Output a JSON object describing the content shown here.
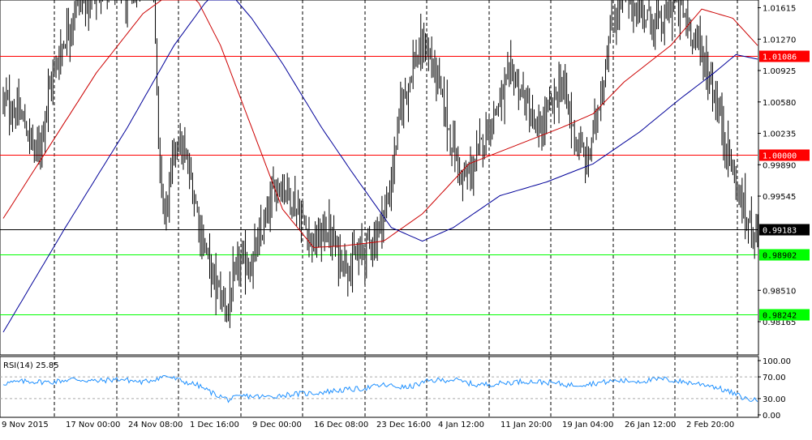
{
  "chart_data": {
    "type": "candlestick",
    "symbol_note": "",
    "price_axis": {
      "min": 0.978,
      "max": 1.017,
      "ticks": [
        "1.01615",
        "1.01270",
        "1.00925",
        "1.00580",
        "1.00235",
        "0.99890",
        "0.99545",
        "0.98510",
        "0.98165"
      ],
      "tick_values": [
        1.01615,
        1.0127,
        1.00925,
        1.0058,
        1.00235,
        0.9989,
        0.99545,
        0.9851,
        0.98165
      ]
    },
    "time_axis": {
      "labels": [
        "9 Nov 2015",
        "17 Nov 00:00",
        "24 Nov 08:00",
        "1 Dec 16:00",
        "9 Dec 00:00",
        "16 Dec 08:00",
        "23 Dec 16:00",
        "4 Jan 12:00",
        "11 Jan 20:00",
        "19 Jan 04:00",
        "26 Jan 12:00",
        "2 Feb 20:00"
      ]
    },
    "horizontal_lines": [
      {
        "name": "resistance-1",
        "value": 1.01086,
        "label": "1.01086",
        "color": "#ff0000",
        "badge_color": "#ff0000"
      },
      {
        "name": "resistance-2",
        "value": 1.0,
        "label": "1.00000",
        "color": "#ff0000",
        "badge_color": "#ff0000"
      },
      {
        "name": "current-price",
        "value": 0.99183,
        "label": "0.99183",
        "color": "#000000",
        "badge_color": "#000000"
      },
      {
        "name": "support-1",
        "value": 0.98902,
        "label": "0.98902",
        "color": "#00ff00",
        "badge_color": "#00ff00"
      },
      {
        "name": "support-2",
        "value": 0.98242,
        "label": "0.98242",
        "color": "#00ff00",
        "badge_color": "#00ff00"
      }
    ],
    "ohlc_anchors": [
      [
        0,
        1.006
      ],
      [
        12,
        1.004
      ],
      [
        22,
        1.0
      ],
      [
        30,
        1.0075
      ],
      [
        38,
        1.012
      ],
      [
        46,
        1.016
      ],
      [
        58,
        1.018
      ],
      [
        70,
        1.019
      ],
      [
        82,
        1.017
      ],
      [
        90,
        1.022
      ],
      [
        96,
        1.025
      ],
      [
        100,
        1.0
      ],
      [
        104,
        0.993
      ],
      [
        112,
        1.002
      ],
      [
        120,
        0.998
      ],
      [
        128,
        0.991
      ],
      [
        136,
        0.986
      ],
      [
        144,
        0.983
      ],
      [
        152,
        0.988
      ],
      [
        160,
        0.988
      ],
      [
        168,
        0.992
      ],
      [
        176,
        0.997
      ],
      [
        184,
        0.996
      ],
      [
        192,
        0.993
      ],
      [
        200,
        0.99
      ],
      [
        208,
        0.992
      ],
      [
        216,
        0.989
      ],
      [
        224,
        0.988
      ],
      [
        232,
        0.9895
      ],
      [
        240,
        0.991
      ],
      [
        248,
        0.995
      ],
      [
        256,
        1.005
      ],
      [
        264,
        1.01
      ],
      [
        272,
        1.012
      ],
      [
        280,
        1.008
      ],
      [
        288,
        1.002
      ],
      [
        296,
        0.997
      ],
      [
        304,
        0.999
      ],
      [
        312,
        1.003
      ],
      [
        320,
        1.006
      ],
      [
        328,
        1.009
      ],
      [
        336,
        1.006
      ],
      [
        344,
        1.002
      ],
      [
        352,
        1.005
      ],
      [
        360,
        1.008
      ],
      [
        368,
        1.002
      ],
      [
        376,
        0.999
      ],
      [
        384,
        1.006
      ],
      [
        392,
        1.014
      ],
      [
        400,
        1.018
      ],
      [
        408,
        1.016
      ],
      [
        416,
        1.015
      ],
      [
        424,
        1.014
      ],
      [
        432,
        1.017
      ],
      [
        440,
        1.015
      ],
      [
        448,
        1.012
      ],
      [
        456,
        1.008
      ],
      [
        462,
        1.004
      ],
      [
        470,
        0.998
      ],
      [
        478,
        0.993
      ],
      [
        486,
        0.9918
      ]
    ],
    "moving_averages": [
      {
        "name": "ma-red",
        "color": "#cc0000",
        "points": [
          [
            0,
            0.993
          ],
          [
            30,
            1.001
          ],
          [
            60,
            1.009
          ],
          [
            90,
            1.0155
          ],
          [
            110,
            1.018
          ],
          [
            125,
            1.017
          ],
          [
            140,
            1.012
          ],
          [
            160,
            1.003
          ],
          [
            180,
            0.994
          ],
          [
            200,
            0.9898
          ],
          [
            220,
            0.99
          ],
          [
            245,
            0.9905
          ],
          [
            270,
            0.9935
          ],
          [
            300,
            0.999
          ],
          [
            330,
            1.001
          ],
          [
            360,
            1.003
          ],
          [
            380,
            1.0045
          ],
          [
            400,
            1.008
          ],
          [
            430,
            1.012
          ],
          [
            450,
            1.016
          ],
          [
            470,
            1.015
          ],
          [
            486,
            1.012
          ]
        ]
      },
      {
        "name": "ma-blue",
        "color": "#000099",
        "points": [
          [
            0,
            0.9805
          ],
          [
            40,
            0.992
          ],
          [
            80,
            1.003
          ],
          [
            110,
            1.012
          ],
          [
            140,
            1.019
          ],
          [
            160,
            1.015
          ],
          [
            180,
            1.01
          ],
          [
            205,
            1.003
          ],
          [
            225,
            0.998
          ],
          [
            250,
            0.992
          ],
          [
            270,
            0.9905
          ],
          [
            290,
            0.992
          ],
          [
            320,
            0.9955
          ],
          [
            350,
            0.997
          ],
          [
            380,
            0.999
          ],
          [
            410,
            1.0025
          ],
          [
            435,
            1.006
          ],
          [
            458,
            1.009
          ],
          [
            472,
            1.011
          ],
          [
            486,
            1.0105
          ]
        ]
      }
    ],
    "rsi": {
      "label": "RSI(14) 25.85",
      "axis_ticks": [
        "100.00",
        "70.00",
        "30.00",
        "0.00"
      ],
      "tick_values": [
        100,
        70,
        30,
        0
      ],
      "levels": [
        70,
        30
      ],
      "color": "#1e90ff",
      "points": [
        [
          0,
          58
        ],
        [
          15,
          62
        ],
        [
          30,
          60
        ],
        [
          45,
          66
        ],
        [
          60,
          62
        ],
        [
          75,
          66
        ],
        [
          90,
          60
        ],
        [
          105,
          72
        ],
        [
          115,
          62
        ],
        [
          125,
          55
        ],
        [
          135,
          40
        ],
        [
          145,
          28
        ],
        [
          155,
          35
        ],
        [
          170,
          33
        ],
        [
          185,
          38
        ],
        [
          200,
          40
        ],
        [
          215,
          45
        ],
        [
          230,
          48
        ],
        [
          245,
          55
        ],
        [
          260,
          50
        ],
        [
          275,
          63
        ],
        [
          290,
          65
        ],
        [
          305,
          55
        ],
        [
          320,
          58
        ],
        [
          335,
          62
        ],
        [
          350,
          60
        ],
        [
          365,
          55
        ],
        [
          380,
          58
        ],
        [
          395,
          63
        ],
        [
          410,
          62
        ],
        [
          425,
          66
        ],
        [
          440,
          60
        ],
        [
          455,
          55
        ],
        [
          470,
          40
        ],
        [
          478,
          30
        ],
        [
          486,
          26
        ]
      ]
    }
  }
}
